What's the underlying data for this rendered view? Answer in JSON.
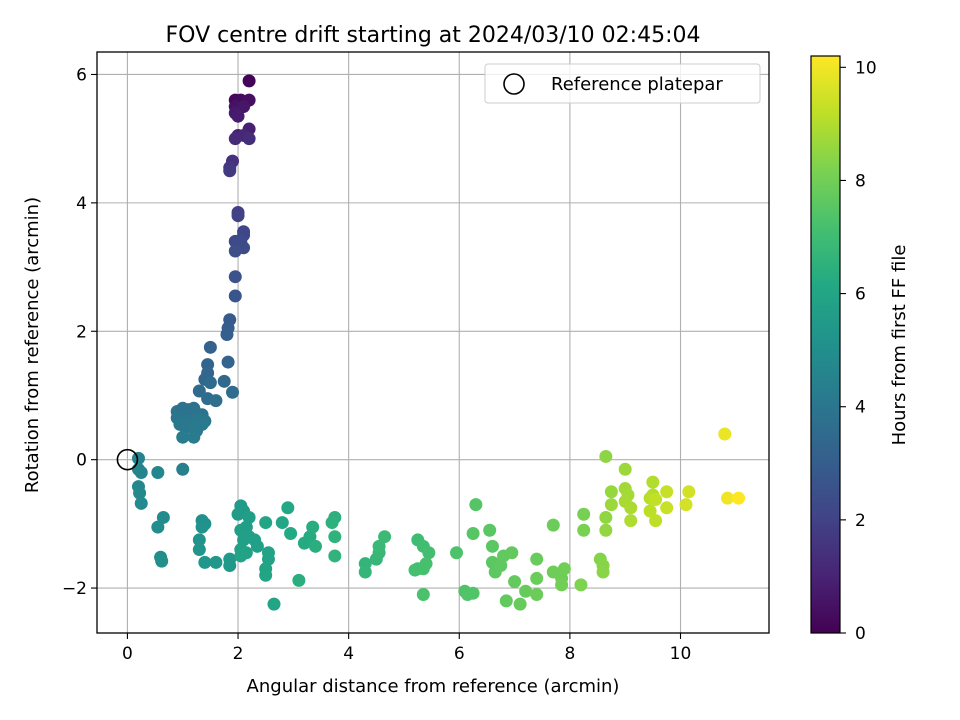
{
  "chart_data": {
    "type": "scatter",
    "title": "FOV centre drift starting at 2024/03/10 02:45:04",
    "xlabel": "Angular distance from reference (arcmin)",
    "ylabel": "Rotation from reference (arcmin)",
    "xlim": [
      -0.55,
      11.6
    ],
    "ylim": [
      -2.7,
      6.35
    ],
    "xticks": [
      0,
      2,
      4,
      6,
      8,
      10
    ],
    "yticks": [
      -2,
      0,
      2,
      4,
      6
    ],
    "xtick_labels": [
      "0",
      "2",
      "4",
      "6",
      "8",
      "10"
    ],
    "ytick_labels": [
      "−2",
      "0",
      "2",
      "4",
      "6"
    ],
    "grid": true,
    "legend": {
      "placement": "top-right",
      "entries": [
        "Reference platepar"
      ]
    },
    "reference_point": {
      "name": "Reference platepar",
      "x": 0,
      "y": 0,
      "marker": "open-circle"
    },
    "colorbar": {
      "label": "Hours from first FF file",
      "min": 0,
      "max": 10.2,
      "ticks": [
        0,
        2,
        4,
        6,
        8,
        10
      ],
      "tick_labels": [
        "0",
        "2",
        "4",
        "6",
        "8",
        "10"
      ],
      "colormap": "viridis"
    },
    "points": [
      [
        2.2,
        5.9,
        0.1
      ],
      [
        1.95,
        5.6,
        0.2
      ],
      [
        2.05,
        5.6,
        0.3
      ],
      [
        2.2,
        5.6,
        0.4
      ],
      [
        1.95,
        5.5,
        0.5
      ],
      [
        2.1,
        5.5,
        0.6
      ],
      [
        1.95,
        5.4,
        0.7
      ],
      [
        2.0,
        5.35,
        0.8
      ],
      [
        2.2,
        5.15,
        0.9
      ],
      [
        2.0,
        5.05,
        1.0
      ],
      [
        2.1,
        5.05,
        1.1
      ],
      [
        1.95,
        5.0,
        1.2
      ],
      [
        2.2,
        5.0,
        1.3
      ],
      [
        1.9,
        4.65,
        1.45
      ],
      [
        1.85,
        4.55,
        1.6
      ],
      [
        1.85,
        4.5,
        1.7
      ],
      [
        2.0,
        3.85,
        1.95
      ],
      [
        2.0,
        3.8,
        2.0
      ],
      [
        2.1,
        3.55,
        2.1
      ],
      [
        2.1,
        3.5,
        2.15
      ],
      [
        1.95,
        3.4,
        2.2
      ],
      [
        2.05,
        3.4,
        2.25
      ],
      [
        2.0,
        3.3,
        2.3
      ],
      [
        2.1,
        3.3,
        2.35
      ],
      [
        1.95,
        3.25,
        2.4
      ],
      [
        1.95,
        2.85,
        2.55
      ],
      [
        1.95,
        2.55,
        2.7
      ],
      [
        1.85,
        2.18,
        2.9
      ],
      [
        1.82,
        2.05,
        3.0
      ],
      [
        1.8,
        1.95,
        3.05
      ],
      [
        1.5,
        1.75,
        3.2
      ],
      [
        1.82,
        1.52,
        3.25
      ],
      [
        1.45,
        1.48,
        3.3
      ],
      [
        1.45,
        1.35,
        3.35
      ],
      [
        1.4,
        1.25,
        3.4
      ],
      [
        1.75,
        1.22,
        3.45
      ],
      [
        1.5,
        1.2,
        3.5
      ],
      [
        1.3,
        1.07,
        3.55
      ],
      [
        1.9,
        1.05,
        3.6
      ],
      [
        1.45,
        0.95,
        3.65
      ],
      [
        1.6,
        0.92,
        3.7
      ],
      [
        1.0,
        0.8,
        3.75
      ],
      [
        1.1,
        0.78,
        3.78
      ],
      [
        1.2,
        0.8,
        3.8
      ],
      [
        0.9,
        0.75,
        3.82
      ],
      [
        1.0,
        0.72,
        3.85
      ],
      [
        1.1,
        0.7,
        3.87
      ],
      [
        1.25,
        0.72,
        3.9
      ],
      [
        1.35,
        0.7,
        3.92
      ],
      [
        0.9,
        0.65,
        3.95
      ],
      [
        1.0,
        0.62,
        3.97
      ],
      [
        1.15,
        0.6,
        4.0
      ],
      [
        1.3,
        0.62,
        4.02
      ],
      [
        1.4,
        0.6,
        4.05
      ],
      [
        0.95,
        0.55,
        4.07
      ],
      [
        1.05,
        0.5,
        4.1
      ],
      [
        1.2,
        0.52,
        4.12
      ],
      [
        1.35,
        0.55,
        4.15
      ],
      [
        1.25,
        0.45,
        4.18
      ],
      [
        1.0,
        0.35,
        4.2
      ],
      [
        1.2,
        0.35,
        4.22
      ],
      [
        1.0,
        -0.15,
        4.35
      ],
      [
        0.2,
        0.02,
        4.5
      ],
      [
        0.2,
        -0.15,
        4.55
      ],
      [
        0.25,
        -0.2,
        4.6
      ],
      [
        0.55,
        -0.2,
        4.65
      ],
      [
        0.2,
        -0.42,
        4.7
      ],
      [
        0.22,
        -0.52,
        4.75
      ],
      [
        0.25,
        -0.68,
        4.8
      ],
      [
        0.65,
        -0.9,
        4.85
      ],
      [
        0.55,
        -1.05,
        4.9
      ],
      [
        0.6,
        -1.52,
        4.95
      ],
      [
        0.62,
        -1.58,
        5.0
      ],
      [
        1.35,
        -0.95,
        5.05
      ],
      [
        1.4,
        -1.0,
        5.1
      ],
      [
        1.35,
        -1.05,
        5.15
      ],
      [
        1.3,
        -1.25,
        5.2
      ],
      [
        1.3,
        -1.4,
        5.25
      ],
      [
        1.4,
        -1.6,
        5.3
      ],
      [
        1.6,
        -1.6,
        5.35
      ],
      [
        1.85,
        -1.55,
        5.4
      ],
      [
        1.85,
        -1.65,
        5.45
      ],
      [
        2.05,
        -0.72,
        5.5
      ],
      [
        2.1,
        -0.8,
        5.55
      ],
      [
        2.0,
        -0.85,
        5.6
      ],
      [
        2.2,
        -0.9,
        5.62
      ],
      [
        2.15,
        -1.05,
        5.65
      ],
      [
        2.05,
        -1.1,
        5.68
      ],
      [
        2.2,
        -1.2,
        5.7
      ],
      [
        2.1,
        -1.25,
        5.72
      ],
      [
        2.3,
        -1.25,
        5.75
      ],
      [
        2.35,
        -1.35,
        5.78
      ],
      [
        2.05,
        -1.4,
        5.8
      ],
      [
        2.15,
        -1.45,
        5.82
      ],
      [
        2.55,
        -1.45,
        5.85
      ],
      [
        2.05,
        -1.5,
        5.88
      ],
      [
        2.55,
        -1.55,
        5.9
      ],
      [
        2.5,
        -1.7,
        5.92
      ],
      [
        2.5,
        -1.8,
        5.95
      ],
      [
        2.65,
        -2.25,
        5.98
      ],
      [
        2.5,
        -0.98,
        6.0
      ],
      [
        2.8,
        -0.98,
        6.05
      ],
      [
        2.9,
        -0.75,
        6.1
      ],
      [
        2.95,
        -1.15,
        6.15
      ],
      [
        3.2,
        -1.3,
        6.2
      ],
      [
        3.3,
        -1.2,
        6.25
      ],
      [
        3.35,
        -1.05,
        6.3
      ],
      [
        3.4,
        -1.35,
        6.35
      ],
      [
        3.1,
        -1.88,
        6.4
      ],
      [
        3.75,
        -0.9,
        6.45
      ],
      [
        3.7,
        -0.98,
        6.5
      ],
      [
        3.75,
        -1.2,
        6.55
      ],
      [
        3.75,
        -1.5,
        6.6
      ],
      [
        4.3,
        -1.62,
        6.65
      ],
      [
        4.3,
        -1.75,
        6.7
      ],
      [
        4.5,
        -1.55,
        6.75
      ],
      [
        4.55,
        -1.45,
        6.8
      ],
      [
        4.55,
        -1.35,
        6.85
      ],
      [
        4.65,
        -1.2,
        6.9
      ],
      [
        5.25,
        -1.25,
        7.0
      ],
      [
        5.35,
        -1.35,
        7.05
      ],
      [
        5.45,
        -1.45,
        7.1
      ],
      [
        5.25,
        -1.7,
        7.12
      ],
      [
        5.2,
        -1.72,
        7.15
      ],
      [
        5.35,
        -1.7,
        7.18
      ],
      [
        5.4,
        -1.62,
        7.2
      ],
      [
        5.35,
        -2.1,
        7.25
      ],
      [
        5.95,
        -1.45,
        7.3
      ],
      [
        6.1,
        -2.05,
        7.35
      ],
      [
        6.15,
        -2.1,
        7.38
      ],
      [
        6.25,
        -2.08,
        7.4
      ],
      [
        6.3,
        -0.7,
        7.45
      ],
      [
        6.25,
        -1.15,
        7.5
      ],
      [
        6.55,
        -1.1,
        7.55
      ],
      [
        6.6,
        -1.35,
        7.58
      ],
      [
        6.6,
        -1.6,
        7.6
      ],
      [
        6.65,
        -1.75,
        7.62
      ],
      [
        6.75,
        -1.65,
        7.65
      ],
      [
        6.8,
        -1.5,
        7.68
      ],
      [
        6.85,
        -2.2,
        7.7
      ],
      [
        6.95,
        -1.45,
        7.72
      ],
      [
        7.0,
        -1.9,
        7.75
      ],
      [
        7.1,
        -2.25,
        7.78
      ],
      [
        7.2,
        -2.05,
        7.8
      ],
      [
        7.4,
        -1.55,
        7.82
      ],
      [
        7.4,
        -1.85,
        7.85
      ],
      [
        7.4,
        -2.1,
        7.88
      ],
      [
        7.7,
        -1.02,
        7.9
      ],
      [
        7.7,
        -1.75,
        7.92
      ],
      [
        7.85,
        -1.85,
        7.95
      ],
      [
        7.9,
        -1.7,
        7.98
      ],
      [
        7.85,
        -1.95,
        8.0
      ],
      [
        8.25,
        -0.85,
        8.1
      ],
      [
        8.25,
        -1.1,
        8.15
      ],
      [
        8.2,
        -1.95,
        8.2
      ],
      [
        8.55,
        -1.55,
        8.3
      ],
      [
        8.6,
        -1.65,
        8.35
      ],
      [
        8.6,
        -1.75,
        8.4
      ],
      [
        8.65,
        0.05,
        8.45
      ],
      [
        8.65,
        -0.9,
        8.5
      ],
      [
        8.65,
        -1.1,
        8.55
      ],
      [
        8.75,
        -0.5,
        8.6
      ],
      [
        8.75,
        -0.7,
        8.65
      ],
      [
        9.0,
        -0.15,
        8.7
      ],
      [
        9.0,
        -0.45,
        8.75
      ],
      [
        9.05,
        -0.55,
        8.8
      ],
      [
        9.0,
        -0.65,
        8.85
      ],
      [
        9.1,
        -0.75,
        8.9
      ],
      [
        9.1,
        -0.95,
        8.95
      ],
      [
        9.5,
        -0.35,
        9.0
      ],
      [
        9.5,
        -0.55,
        9.05
      ],
      [
        9.45,
        -0.6,
        9.1
      ],
      [
        9.45,
        -0.8,
        9.15
      ],
      [
        9.55,
        -0.95,
        9.2
      ],
      [
        9.55,
        -0.62,
        9.25
      ],
      [
        9.75,
        -0.5,
        9.3
      ],
      [
        9.75,
        -0.75,
        9.35
      ],
      [
        10.15,
        -0.5,
        9.5
      ],
      [
        10.1,
        -0.7,
        9.55
      ],
      [
        10.8,
        0.4,
        9.9
      ],
      [
        10.85,
        -0.6,
        10.0
      ],
      [
        11.05,
        -0.6,
        10.2
      ]
    ]
  }
}
